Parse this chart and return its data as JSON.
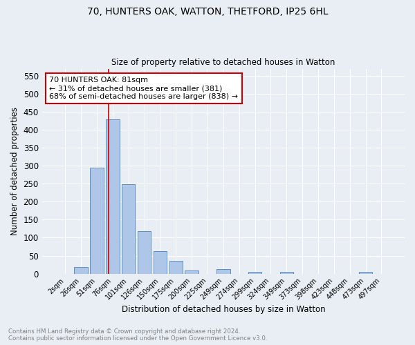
{
  "title1": "70, HUNTERS OAK, WATTON, THETFORD, IP25 6HL",
  "title2": "Size of property relative to detached houses in Watton",
  "xlabel": "Distribution of detached houses by size in Watton",
  "ylabel": "Number of detached properties",
  "bar_labels": [
    "2sqm",
    "26sqm",
    "51sqm",
    "76sqm",
    "101sqm",
    "126sqm",
    "150sqm",
    "175sqm",
    "200sqm",
    "225sqm",
    "249sqm",
    "274sqm",
    "299sqm",
    "324sqm",
    "349sqm",
    "373sqm",
    "398sqm",
    "423sqm",
    "448sqm",
    "473sqm",
    "497sqm"
  ],
  "bar_values": [
    0,
    18,
    295,
    430,
    248,
    118,
    63,
    36,
    8,
    0,
    13,
    0,
    5,
    0,
    4,
    0,
    0,
    0,
    0,
    5,
    0
  ],
  "bar_color": "#aec6e8",
  "bar_edge_color": "#5a8fc2",
  "bg_color": "#e8eef4",
  "grid_color": "#ffffff",
  "annotation_text": "70 HUNTERS OAK: 81sqm\n← 31% of detached houses are smaller (381)\n68% of semi-detached houses are larger (838) →",
  "annotation_box_color": "#ffffff",
  "annotation_box_edge": "#cc0000",
  "vline_color": "#cc0000",
  "ylim": [
    0,
    570
  ],
  "yticks": [
    0,
    50,
    100,
    150,
    200,
    250,
    300,
    350,
    400,
    450,
    500,
    550
  ],
  "footnote": "Contains HM Land Registry data © Crown copyright and database right 2024.\nContains public sector information licensed under the Open Government Licence v3.0.",
  "footnote_color": "#808080",
  "fig_width": 6.0,
  "fig_height": 5.0,
  "dpi": 100
}
